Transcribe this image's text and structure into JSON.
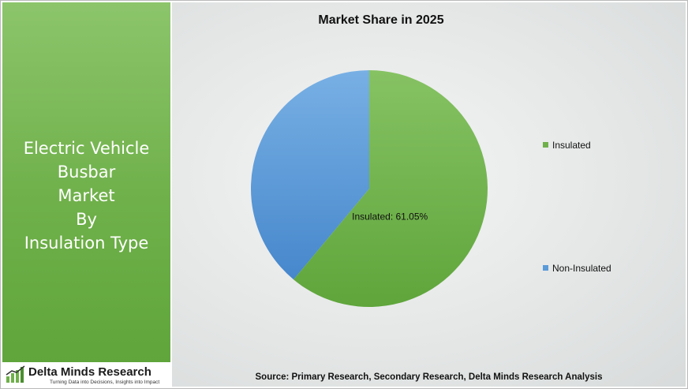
{
  "left_panel": {
    "title_lines": [
      "Electric Vehicle",
      "Busbar",
      "Market",
      "By",
      "Insulation Type"
    ]
  },
  "logo": {
    "name": "Delta Minds Research",
    "tagline": "Turning Data into Decisions, Insights into Impact"
  },
  "source_text": "Source: Primary Research, Secondary Research, Delta Minds Research Analysis",
  "chart_data": {
    "type": "pie",
    "title": "Market Share in 2025",
    "slices": [
      {
        "label": "Insulated",
        "value": 61.05,
        "color": "#6fb04a",
        "data_label": "Insulated: 61.05%"
      },
      {
        "label": "Non-Insulated",
        "value": 38.95,
        "color": "#5a9bd8",
        "data_label": ""
      }
    ],
    "legend": [
      "Insulated",
      "Non-Insulated"
    ],
    "legend_position": "right",
    "start_angle": "12 o'clock",
    "direction": "clockwise"
  }
}
